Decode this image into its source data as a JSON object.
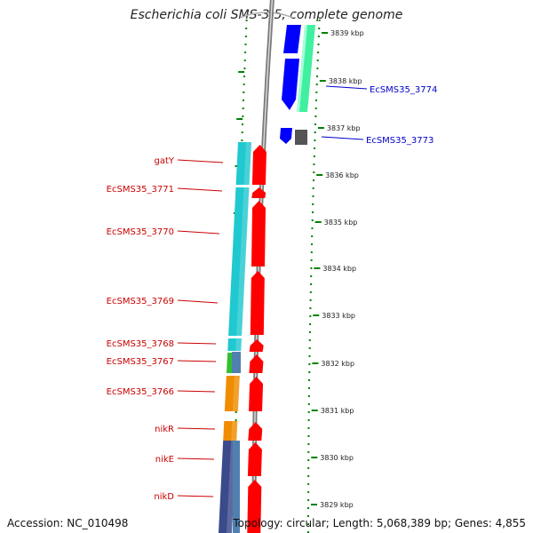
{
  "title": "Escherichia coli SMS-3-5, complete genome",
  "footer": {
    "accession": "Accession: NC_010498",
    "topology": "Topology: circular; Length: 5,068,389 bp; Genes: 4,855"
  },
  "colors": {
    "left_labels": "#cc0000",
    "right_labels": "#0000cc",
    "tick_marks": "#008000",
    "backbone": "#888888",
    "cds_red": "#ff0000",
    "cds_blue": "#0000ff",
    "cds_gray": "#555555",
    "cog_cyan": "#20c8d0",
    "cog_green": "#30c030",
    "cog_orange": "#f08c00",
    "cog_navy": "#3a4a8a",
    "cog_steel": "#5080b0",
    "cog_mint": "#40f0a0"
  },
  "scale": {
    "unit": "kbp",
    "tick_labels": [
      "3839 kbp",
      "3838 kbp",
      "3837 kbp",
      "3836 kbp",
      "3835 kbp",
      "3834 kbp",
      "3833 kbp",
      "3832 kbp",
      "3831 kbp",
      "3830 kbp",
      "3829 kbp"
    ]
  },
  "left_genes": [
    {
      "label": "gatY"
    },
    {
      "label": "EcSMS35_3771"
    },
    {
      "label": "EcSMS35_3770"
    },
    {
      "label": "EcSMS35_3769"
    },
    {
      "label": "EcSMS35_3768"
    },
    {
      "label": "EcSMS35_3767"
    },
    {
      "label": "EcSMS35_3766"
    },
    {
      "label": "nikR"
    },
    {
      "label": "nikE"
    },
    {
      "label": "nikD"
    }
  ],
  "right_genes": [
    {
      "label": "EcSMS35_3774"
    },
    {
      "label": "EcSMS35_3773"
    }
  ]
}
